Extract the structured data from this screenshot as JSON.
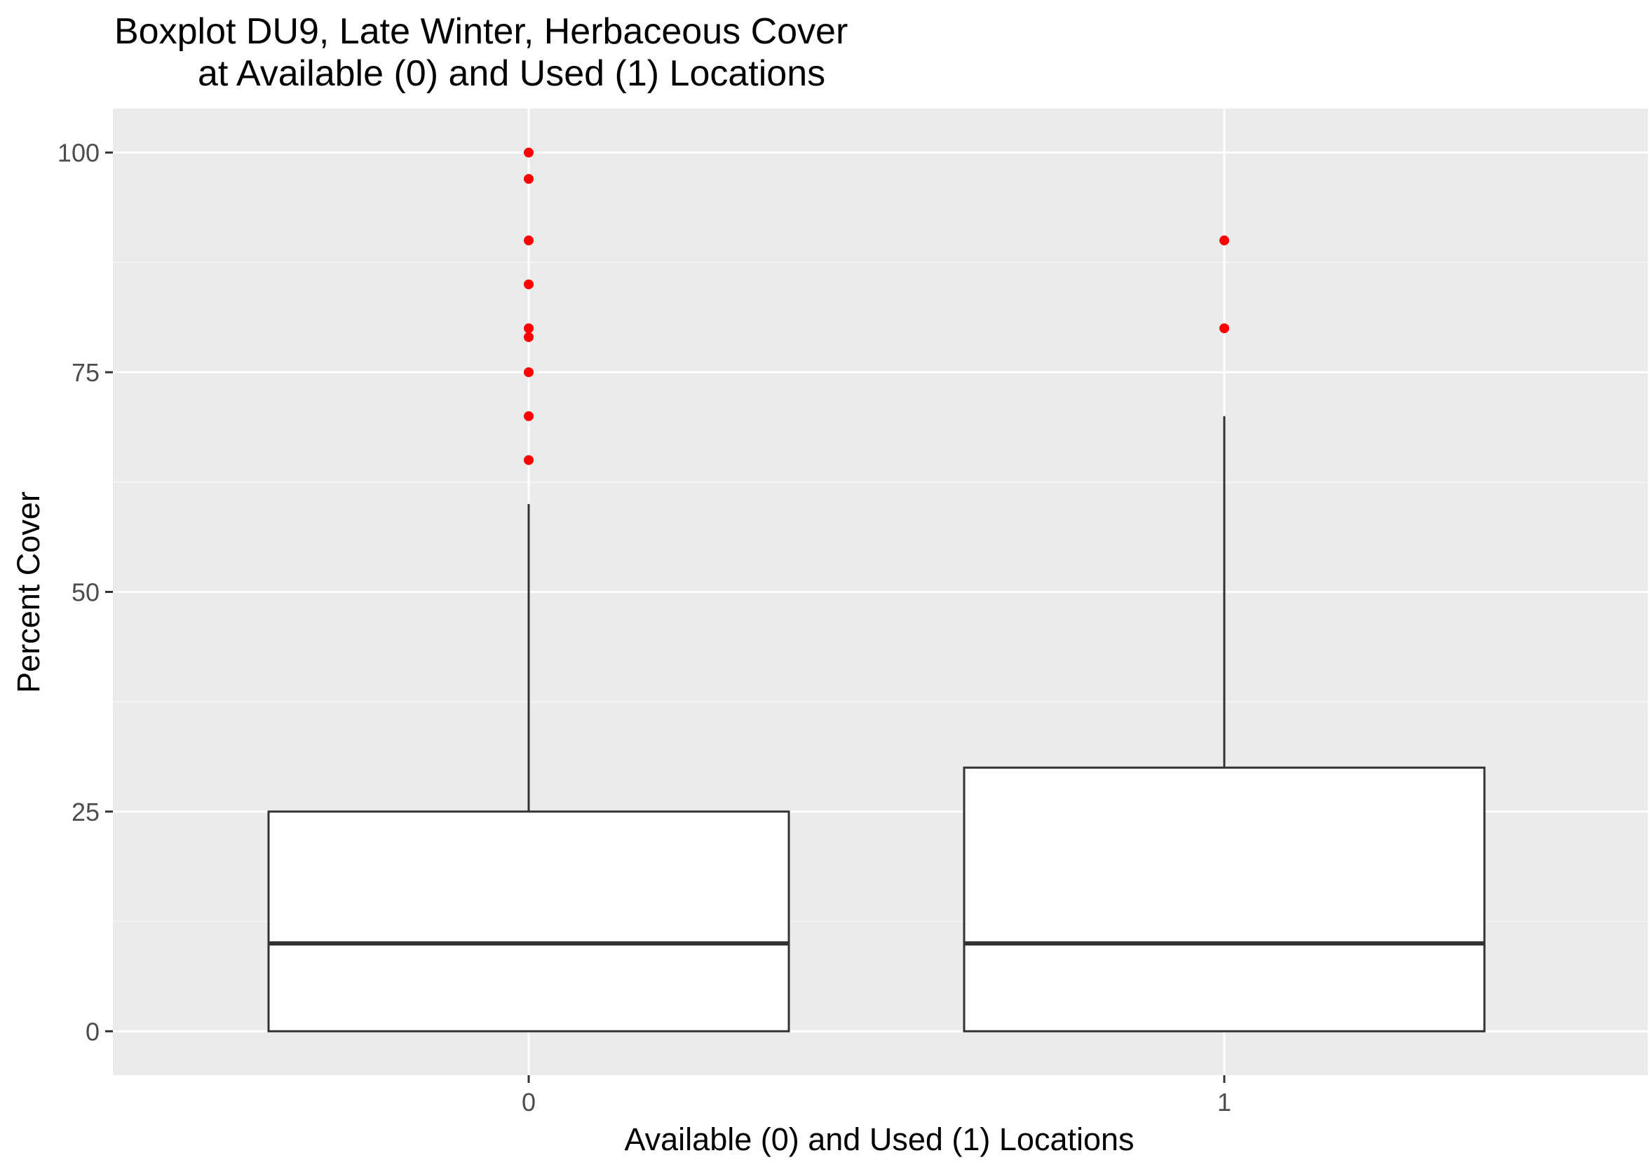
{
  "chart_data": {
    "type": "boxplot",
    "title_lines": [
      "Boxplot DU9, Late Winter, Herbaceous Cover",
      "at Available (0) and Used (1) Locations"
    ],
    "xlabel": "Available (0) and Used (1) Locations",
    "ylabel": "Percent Cover",
    "categories": [
      "0",
      "1"
    ],
    "ylim": [
      -5,
      105
    ],
    "y_ticks": [
      0,
      25,
      50,
      75,
      100
    ],
    "grid": true,
    "boxes": [
      {
        "category": "0",
        "lower_whisker": 0,
        "q1": 0,
        "median": 10,
        "q3": 25,
        "upper_whisker": 60,
        "outliers": [
          65,
          70,
          75,
          79,
          80,
          85,
          90,
          97,
          100
        ]
      },
      {
        "category": "1",
        "lower_whisker": 0,
        "q1": 0,
        "median": 10,
        "q3": 30,
        "upper_whisker": 70,
        "outliers": [
          80,
          90
        ]
      }
    ],
    "colors": {
      "panel_background": "#ebebeb",
      "grid_major": "#ffffff",
      "grid_minor": "#f5f5f5",
      "box_fill": "#ffffff",
      "box_line": "#333333",
      "outlier": "#ff0000",
      "tick_label": "#4d4d4d"
    }
  }
}
